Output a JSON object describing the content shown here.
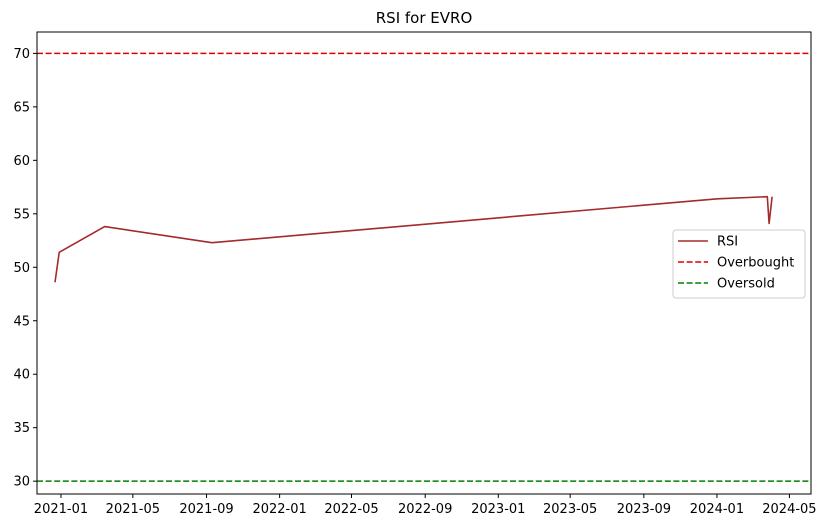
{
  "chart_data": {
    "type": "line",
    "title": "RSI for EVRO",
    "xlabel": "",
    "ylabel": "",
    "xlim": [
      "2020-11-22",
      "2024-06-06"
    ],
    "ylim": [
      28.8,
      72.0
    ],
    "x_ticks": [
      "2021-01",
      "2021-05",
      "2021-09",
      "2022-01",
      "2022-05",
      "2022-09",
      "2023-01",
      "2023-05",
      "2023-09",
      "2024-01",
      "2024-05"
    ],
    "y_ticks": [
      30,
      35,
      40,
      45,
      50,
      55,
      60,
      65,
      70
    ],
    "grid": false,
    "legend_position": "center-right",
    "series": [
      {
        "name": "RSI",
        "color": "#a52a2a",
        "style": "solid",
        "points": [
          {
            "x": "2020-12-22",
            "y": 48.6
          },
          {
            "x": "2020-12-29",
            "y": 51.4
          },
          {
            "x": "2021-03-15",
            "y": 53.8
          },
          {
            "x": "2021-09-10",
            "y": 52.3
          },
          {
            "x": "2024-01-02",
            "y": 56.4
          },
          {
            "x": "2024-03-25",
            "y": 56.6
          },
          {
            "x": "2024-03-28",
            "y": 54.1
          },
          {
            "x": "2024-04-02",
            "y": 56.6
          }
        ]
      }
    ],
    "reference_lines": [
      {
        "name": "Overbought",
        "y": 70,
        "color": "#e00000",
        "style": "dashed"
      },
      {
        "name": "Oversold",
        "y": 30,
        "color": "#008000",
        "style": "dashed"
      }
    ]
  }
}
